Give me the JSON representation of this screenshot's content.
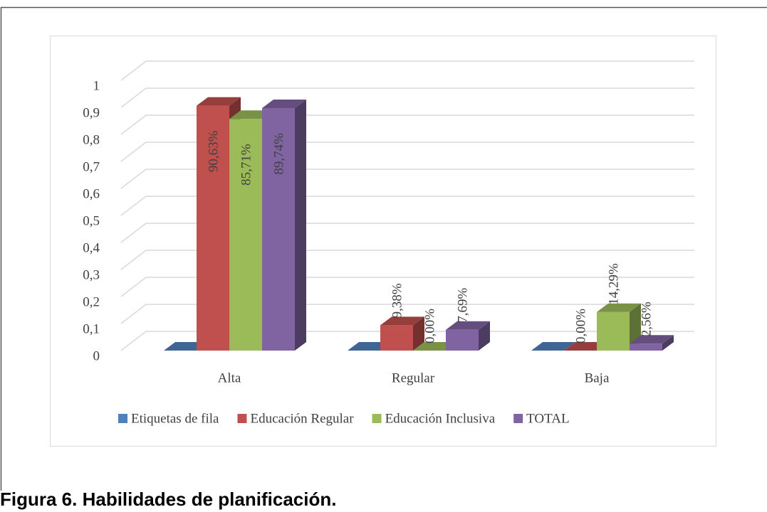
{
  "chart_data": {
    "type": "bar3d",
    "categories": [
      "Alta",
      "Regular",
      "Baja"
    ],
    "series": [
      {
        "name": "Etiquetas de fila",
        "color": "#4f81bd",
        "values": [
          0,
          0,
          0
        ]
      },
      {
        "name": "Educación Regular",
        "color": "#c0504d",
        "values": [
          0.9063,
          0.0938,
          0
        ],
        "value_labels": [
          "90,63%",
          "9,38%",
          "0,00%"
        ]
      },
      {
        "name": "Educación Inclusiva",
        "color": "#9bbb59",
        "values": [
          0.8571,
          0,
          0.1429
        ],
        "value_labels": [
          "85,71%",
          "0,00%",
          "14,29%"
        ]
      },
      {
        "name": "TOTAL",
        "color": "#8064a2",
        "values": [
          0.8974,
          0.0769,
          0.0256
        ],
        "value_labels": [
          "89,74%",
          "7,69%",
          "2,56%"
        ]
      }
    ],
    "ylim": [
      0,
      1
    ],
    "yticks": [
      0,
      {
        "value": 0.1,
        "label": "0,1"
      },
      {
        "value": 0.2,
        "label": "0,2"
      },
      {
        "value": 0.3,
        "label": "0,3"
      },
      {
        "value": 0.4,
        "label": "0,4"
      },
      {
        "value": 0.5,
        "label": "0,5"
      },
      {
        "value": 0.6,
        "label": "0,6"
      },
      {
        "value": 0.7,
        "label": "0,7"
      },
      {
        "value": 0.8,
        "label": "0,8"
      },
      {
        "value": 0.9,
        "label": "0,9"
      },
      1
    ],
    "grid": true,
    "legend": "bottom",
    "caption": "Figura 6. Habilidades de planificación."
  }
}
